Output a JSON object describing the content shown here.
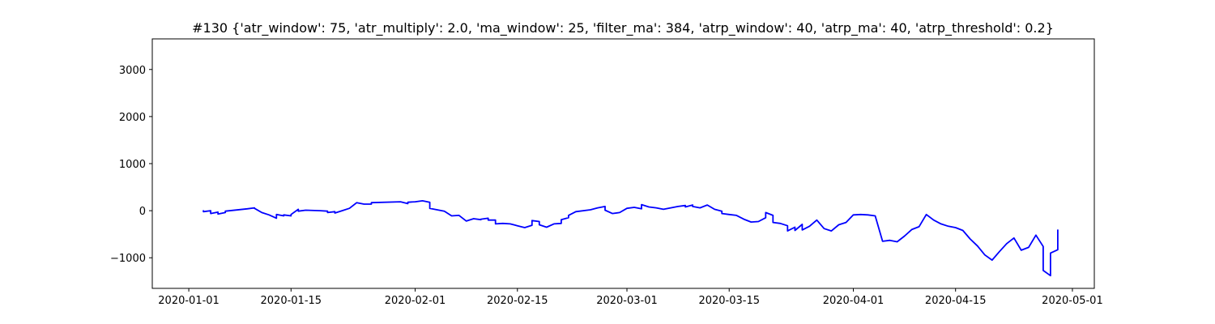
{
  "chart_data": {
    "type": "line",
    "title": "#130 {'atr_window': 75, 'atr_multiply': 2.0, 'ma_window': 25, 'filter_ma': 384, 'atrp_window': 40, 'atrp_ma': 40, 'atrp_threshold': 0.2}",
    "xlabel": "",
    "ylabel": "",
    "x_type": "date",
    "xlim": [
      "2019-12-27",
      "2020-05-04"
    ],
    "ylim": [
      -1650,
      3650
    ],
    "grid": false,
    "legend": "none",
    "x_ticks": [
      "2020-01-01",
      "2020-01-15",
      "2020-02-01",
      "2020-02-15",
      "2020-03-01",
      "2020-03-15",
      "2020-04-01",
      "2020-04-15",
      "2020-05-01"
    ],
    "y_ticks": [
      -1000,
      0,
      1000,
      2000,
      3000
    ],
    "series": [
      {
        "color": "#0000ff",
        "points": [
          [
            "2020-01-03",
            10
          ],
          [
            "2020-01-03",
            -20
          ],
          [
            "2020-01-04",
            0
          ],
          [
            "2020-01-04",
            -60
          ],
          [
            "2020-01-05",
            -30
          ],
          [
            "2020-01-05",
            -70
          ],
          [
            "2020-01-06",
            -40
          ],
          [
            "2020-01-06",
            -10
          ],
          [
            "2020-01-09",
            40
          ],
          [
            "2020-01-10",
            60
          ],
          [
            "2020-01-10",
            50
          ],
          [
            "2020-01-11",
            -40
          ],
          [
            "2020-01-12",
            -90
          ],
          [
            "2020-01-13",
            -160
          ],
          [
            "2020-01-13",
            -80
          ],
          [
            "2020-01-14",
            -110
          ],
          [
            "2020-01-14",
            -90
          ],
          [
            "2020-01-15",
            -110
          ],
          [
            "2020-01-15",
            -80
          ],
          [
            "2020-01-16",
            30
          ],
          [
            "2020-01-16",
            -10
          ],
          [
            "2020-01-17",
            10
          ],
          [
            "2020-01-19",
            0
          ],
          [
            "2020-01-20",
            -10
          ],
          [
            "2020-01-20",
            -40
          ],
          [
            "2020-01-21",
            -20
          ],
          [
            "2020-01-21",
            -50
          ],
          [
            "2020-01-22",
            0
          ],
          [
            "2020-01-23",
            50
          ],
          [
            "2020-01-24",
            170
          ],
          [
            "2020-01-25",
            140
          ],
          [
            "2020-01-26",
            140
          ],
          [
            "2020-01-26",
            170
          ],
          [
            "2020-01-30",
            190
          ],
          [
            "2020-01-31",
            150
          ],
          [
            "2020-01-31",
            180
          ],
          [
            "2020-02-01",
            190
          ],
          [
            "2020-02-02",
            210
          ],
          [
            "2020-02-03",
            180
          ],
          [
            "2020-02-03",
            50
          ],
          [
            "2020-02-05",
            -10
          ],
          [
            "2020-02-06",
            -110
          ],
          [
            "2020-02-07",
            -100
          ],
          [
            "2020-02-08",
            -220
          ],
          [
            "2020-02-09",
            -170
          ],
          [
            "2020-02-10",
            -190
          ],
          [
            "2020-02-10",
            -180
          ],
          [
            "2020-02-11",
            -160
          ],
          [
            "2020-02-11",
            -200
          ],
          [
            "2020-02-12",
            -200
          ],
          [
            "2020-02-12",
            -280
          ],
          [
            "2020-02-13",
            -270
          ],
          [
            "2020-02-14",
            -280
          ],
          [
            "2020-02-15",
            -320
          ],
          [
            "2020-02-16",
            -360
          ],
          [
            "2020-02-17",
            -310
          ],
          [
            "2020-02-17",
            -210
          ],
          [
            "2020-02-18",
            -230
          ],
          [
            "2020-02-18",
            -300
          ],
          [
            "2020-02-19",
            -350
          ],
          [
            "2020-02-20",
            -280
          ],
          [
            "2020-02-21",
            -270
          ],
          [
            "2020-02-21",
            -190
          ],
          [
            "2020-02-22",
            -150
          ],
          [
            "2020-02-22",
            -100
          ],
          [
            "2020-02-23",
            -20
          ],
          [
            "2020-02-25",
            20
          ],
          [
            "2020-02-26",
            60
          ],
          [
            "2020-02-27",
            90
          ],
          [
            "2020-02-27",
            10
          ],
          [
            "2020-02-28",
            -60
          ],
          [
            "2020-02-29",
            -40
          ],
          [
            "2020-03-01",
            50
          ],
          [
            "2020-03-02",
            70
          ],
          [
            "2020-03-03",
            40
          ],
          [
            "2020-03-03",
            130
          ],
          [
            "2020-03-04",
            80
          ],
          [
            "2020-03-05",
            60
          ],
          [
            "2020-03-06",
            30
          ],
          [
            "2020-03-07",
            60
          ],
          [
            "2020-03-08",
            90
          ],
          [
            "2020-03-09",
            110
          ],
          [
            "2020-03-09",
            80
          ],
          [
            "2020-03-10",
            120
          ],
          [
            "2020-03-10",
            90
          ],
          [
            "2020-03-11",
            60
          ],
          [
            "2020-03-12",
            120
          ],
          [
            "2020-03-13",
            30
          ],
          [
            "2020-03-14",
            -10
          ],
          [
            "2020-03-14",
            -60
          ],
          [
            "2020-03-15",
            -80
          ],
          [
            "2020-03-16",
            -100
          ],
          [
            "2020-03-17",
            -180
          ],
          [
            "2020-03-18",
            -240
          ],
          [
            "2020-03-19",
            -230
          ],
          [
            "2020-03-20",
            -150
          ],
          [
            "2020-03-20",
            -40
          ],
          [
            "2020-03-21",
            -100
          ],
          [
            "2020-03-21",
            -250
          ],
          [
            "2020-03-22",
            -270
          ],
          [
            "2020-03-23",
            -320
          ],
          [
            "2020-03-23",
            -430
          ],
          [
            "2020-03-24",
            -350
          ],
          [
            "2020-03-24",
            -420
          ],
          [
            "2020-03-25",
            -290
          ],
          [
            "2020-03-25",
            -410
          ],
          [
            "2020-03-26",
            -330
          ],
          [
            "2020-03-27",
            -200
          ],
          [
            "2020-03-28",
            -380
          ],
          [
            "2020-03-29",
            -430
          ],
          [
            "2020-03-30",
            -300
          ],
          [
            "2020-03-31",
            -250
          ],
          [
            "2020-04-01",
            -90
          ],
          [
            "2020-04-02",
            -80
          ],
          [
            "2020-04-03",
            -90
          ],
          [
            "2020-04-04",
            -110
          ],
          [
            "2020-04-05",
            -650
          ],
          [
            "2020-04-06",
            -630
          ],
          [
            "2020-04-07",
            -660
          ],
          [
            "2020-04-08",
            -540
          ],
          [
            "2020-04-09",
            -400
          ],
          [
            "2020-04-10",
            -340
          ],
          [
            "2020-04-11",
            -80
          ],
          [
            "2020-04-12",
            -200
          ],
          [
            "2020-04-13",
            -280
          ],
          [
            "2020-04-14",
            -330
          ],
          [
            "2020-04-15",
            -360
          ],
          [
            "2020-04-16",
            -420
          ],
          [
            "2020-04-17",
            -600
          ],
          [
            "2020-04-18",
            -750
          ],
          [
            "2020-04-19",
            -940
          ],
          [
            "2020-04-20",
            -1050
          ],
          [
            "2020-04-21",
            -870
          ],
          [
            "2020-04-22",
            -700
          ],
          [
            "2020-04-23",
            -580
          ],
          [
            "2020-04-24",
            -840
          ],
          [
            "2020-04-25",
            -780
          ],
          [
            "2020-04-26",
            -520
          ],
          [
            "2020-04-27",
            -760
          ],
          [
            "2020-04-27",
            -1270
          ],
          [
            "2020-04-28",
            -1380
          ],
          [
            "2020-04-28",
            -900
          ],
          [
            "2020-04-29",
            -830
          ],
          [
            "2020-04-29",
            -400
          ]
        ]
      }
    ]
  }
}
